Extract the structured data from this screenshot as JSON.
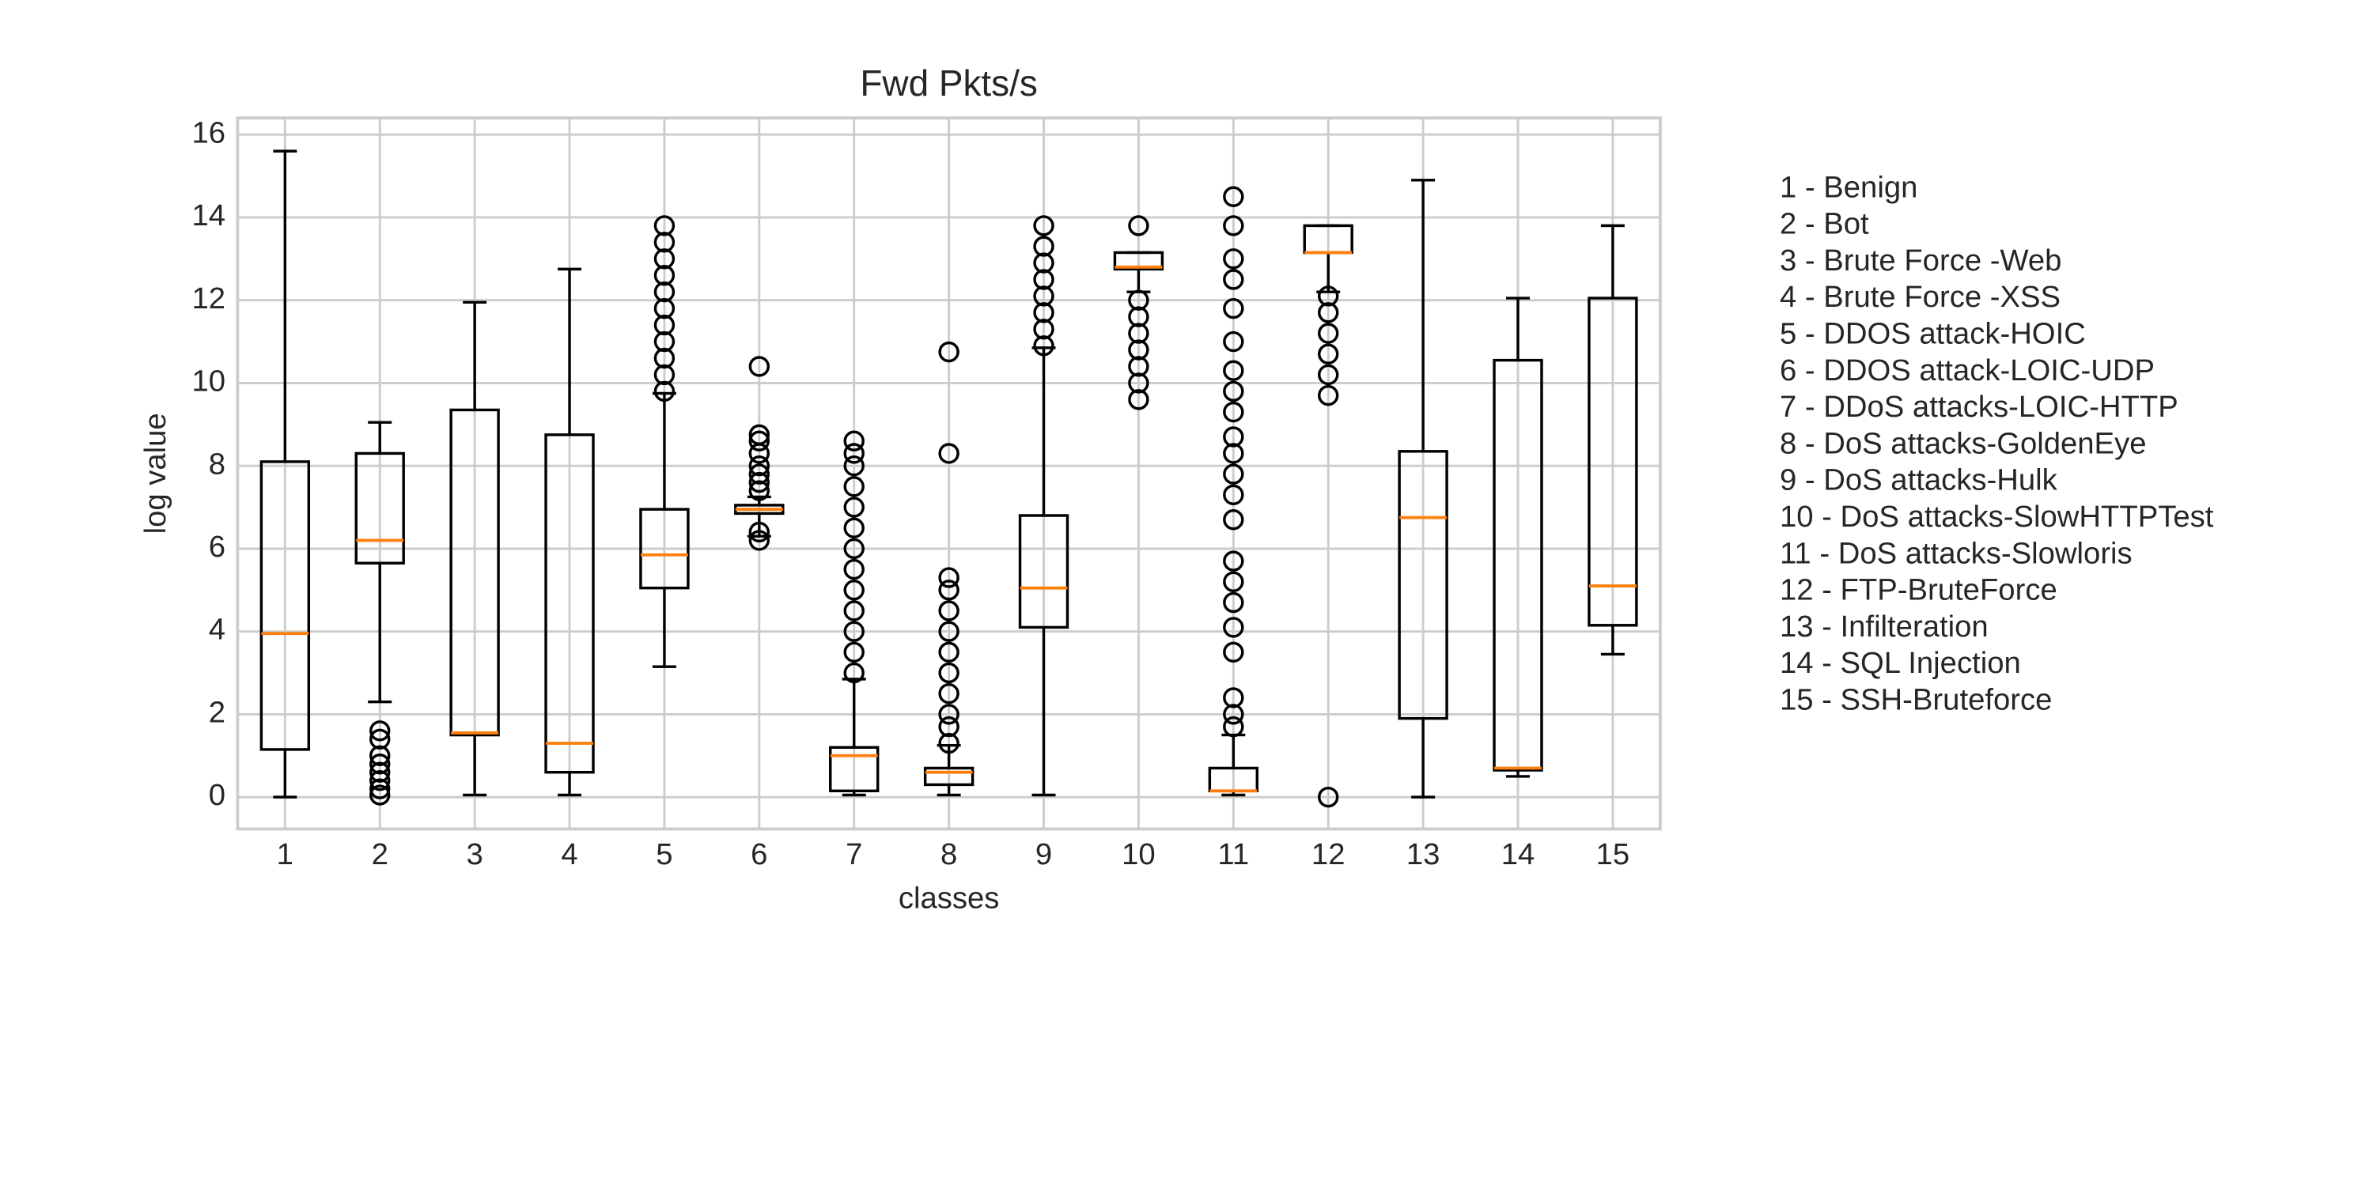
{
  "chart_data": {
    "type": "box",
    "title": "Fwd Pkts/s",
    "x_label": "classes",
    "y_label": "log value",
    "categories": [
      "1",
      "2",
      "3",
      "4",
      "5",
      "6",
      "7",
      "8",
      "9",
      "10",
      "11",
      "12",
      "13",
      "14",
      "15"
    ],
    "boxes": [
      {
        "whislo": 0,
        "q1": 1.15,
        "med": 3.95,
        "q3": 8.1,
        "whishi": 15.6,
        "fliers": []
      },
      {
        "whislo": 2.3,
        "q1": 5.65,
        "med": 6.2,
        "q3": 8.3,
        "whishi": 9.05,
        "fliers": [
          1.6,
          1.4,
          1.0,
          0.8,
          0.6,
          0.4,
          0.2,
          0.05
        ]
      },
      {
        "whislo": 0.05,
        "q1": 1.5,
        "med": 1.55,
        "q3": 9.35,
        "whishi": 11.95,
        "fliers": []
      },
      {
        "whislo": 0.05,
        "q1": 0.6,
        "med": 1.3,
        "q3": 8.75,
        "whishi": 12.75,
        "fliers": []
      },
      {
        "whislo": 3.15,
        "q1": 5.05,
        "med": 5.85,
        "q3": 6.95,
        "whishi": 9.75,
        "fliers": [
          9.8,
          10.2,
          10.6,
          11,
          11.4,
          11.8,
          12.2,
          12.6,
          13,
          13.4,
          13.8
        ]
      },
      {
        "whislo": 6.3,
        "q1": 6.85,
        "med": 6.95,
        "q3": 7.05,
        "whishi": 7.25,
        "fliers": [
          6.2,
          6.4,
          7.4,
          7.6,
          7.8,
          8.0,
          8.3,
          8.6,
          8.75,
          10.4
        ]
      },
      {
        "whislo": 0.05,
        "q1": 0.15,
        "med": 1.0,
        "q3": 1.2,
        "whishi": 2.85,
        "fliers": [
          3,
          3.5,
          4,
          4.5,
          5,
          5.5,
          6,
          6.5,
          7,
          7.5,
          8,
          8.3,
          8.6
        ]
      },
      {
        "whislo": 0.05,
        "q1": 0.3,
        "med": 0.6,
        "q3": 0.7,
        "whishi": 1.25,
        "fliers": [
          1.3,
          1.7,
          2,
          2.5,
          3,
          3.5,
          4,
          4.5,
          5,
          5.3,
          8.3,
          10.75
        ]
      },
      {
        "whislo": 0.05,
        "q1": 4.1,
        "med": 5.05,
        "q3": 6.8,
        "whishi": 10.85,
        "fliers": [
          10.9,
          11.3,
          11.7,
          12.1,
          12.5,
          12.9,
          13.3,
          13.8
        ]
      },
      {
        "whislo": 12.2,
        "q1": 12.75,
        "med": 12.8,
        "q3": 13.15,
        "whishi": 13.15,
        "fliers": [
          9.6,
          10,
          10.4,
          10.8,
          11.2,
          11.6,
          12,
          13.8
        ]
      },
      {
        "whislo": 0.05,
        "q1": 0.15,
        "med": 0.15,
        "q3": 0.7,
        "whishi": 1.5,
        "fliers": [
          1.7,
          2,
          2.4,
          3.5,
          4.1,
          4.7,
          5.2,
          5.7,
          6.7,
          7.3,
          7.8,
          8.3,
          8.7,
          9.3,
          9.8,
          10.3,
          11,
          11.8,
          12.5,
          13,
          13.8,
          14.5
        ]
      },
      {
        "whislo": 12.2,
        "q1": 13.15,
        "med": 13.15,
        "q3": 13.8,
        "whishi": 13.8,
        "fliers": [
          0,
          9.7,
          10.2,
          10.7,
          11.2,
          11.7,
          12.1
        ]
      },
      {
        "whislo": 0,
        "q1": 1.9,
        "med": 6.75,
        "q3": 8.35,
        "whishi": 14.9,
        "fliers": []
      },
      {
        "whislo": 0.5,
        "q1": 0.65,
        "med": 0.7,
        "q3": 10.55,
        "whishi": 12.05,
        "fliers": []
      },
      {
        "whislo": 3.45,
        "q1": 4.15,
        "med": 5.1,
        "q3": 12.05,
        "whishi": 13.8,
        "fliers": []
      }
    ],
    "box_color": "#000000",
    "median_color": "#ff7f0e",
    "ylim": [
      -0.77,
      16.4
    ],
    "yticks": [
      0,
      2,
      4,
      6,
      8,
      10,
      12,
      14,
      16
    ],
    "grid": true,
    "legend_items": [
      "1 - Benign",
      "2 - Bot",
      "3 - Brute Force -Web",
      "4 - Brute Force -XSS",
      "5 - DDOS attack-HOIC",
      "6 - DDOS attack-LOIC-UDP",
      "7 - DDoS attacks-LOIC-HTTP",
      "8 - DoS attacks-GoldenEye",
      "9 - DoS attacks-Hulk",
      "10 - DoS attacks-SlowHTTPTest",
      "11 - DoS attacks-Slowloris",
      "12 - FTP-BruteForce",
      "13 - Infilteration",
      "14 - SQL Injection",
      "15 - SSH-Bruteforce"
    ]
  }
}
